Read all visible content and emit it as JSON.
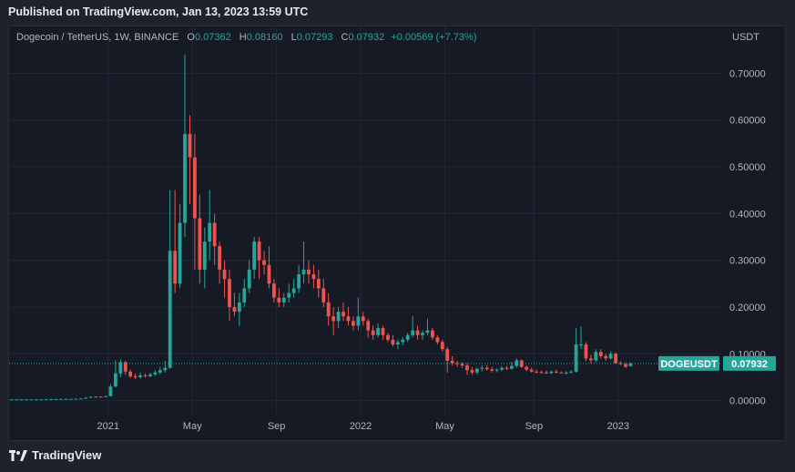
{
  "header": {
    "published": "Published on TradingView.com, Jan 13, 2023 13:59 UTC"
  },
  "legend": {
    "symbol": "Dogecoin / TetherUS, 1W, BINANCE",
    "o_label": "O",
    "o": "0.07362",
    "h_label": "H",
    "h": "0.08160",
    "l_label": "L",
    "l": "0.07293",
    "c_label": "C",
    "c": "0.07932",
    "change": "+0.00569 (+7.73%)"
  },
  "footer": {
    "brand": "TradingView"
  },
  "colors": {
    "up": "#26a69a",
    "down": "#ef5350",
    "background": "#161a25",
    "grid": "#232734",
    "text": "#b2b5be"
  },
  "chart_data": {
    "type": "candlestick",
    "symbol": "DOGEUSDT",
    "currency_label": "USDT",
    "last_price": "0.07932",
    "y_ticks": [
      "0.70000",
      "0.60000",
      "0.50000",
      "0.40000",
      "0.30000",
      "0.20000",
      "0.10000",
      "0.00000"
    ],
    "y_tick_values": [
      0.7,
      0.6,
      0.5,
      0.4,
      0.3,
      0.2,
      0.1,
      0.0
    ],
    "ylim": [
      -0.03,
      0.8
    ],
    "x_ticks": [
      {
        "label": "2021",
        "week": 20
      },
      {
        "label": "May",
        "week": 37
      },
      {
        "label": "Sep",
        "week": 54
      },
      {
        "label": "2022",
        "week": 71
      },
      {
        "label": "May",
        "week": 88
      },
      {
        "label": "Sep",
        "week": 106
      },
      {
        "label": "2023",
        "week": 123
      }
    ],
    "week_range": [
      0,
      144
    ],
    "candles": [
      [
        0.0026,
        0.0026,
        0.0026,
        0.0026
      ],
      [
        0.0026,
        0.0027,
        0.0025,
        0.0026
      ],
      [
        0.0026,
        0.0027,
        0.0025,
        0.0026
      ],
      [
        0.0026,
        0.0027,
        0.0025,
        0.0026
      ],
      [
        0.0026,
        0.0027,
        0.0025,
        0.0026
      ],
      [
        0.0026,
        0.0028,
        0.0025,
        0.0027
      ],
      [
        0.0027,
        0.0028,
        0.0026,
        0.0027
      ],
      [
        0.0027,
        0.0029,
        0.0026,
        0.0028
      ],
      [
        0.0028,
        0.0031,
        0.0027,
        0.003
      ],
      [
        0.003,
        0.0034,
        0.0029,
        0.0033
      ],
      [
        0.0033,
        0.0036,
        0.0031,
        0.0035
      ],
      [
        0.0035,
        0.0038,
        0.0032,
        0.0036
      ],
      [
        0.0036,
        0.0039,
        0.0034,
        0.0037
      ],
      [
        0.0037,
        0.004,
        0.0035,
        0.0039
      ],
      [
        0.0039,
        0.005,
        0.0037,
        0.0045
      ],
      [
        0.0045,
        0.007,
        0.004,
        0.006
      ],
      [
        0.006,
        0.0085,
        0.0055,
        0.008
      ],
      [
        0.008,
        0.009,
        0.0065,
        0.0085
      ],
      [
        0.0085,
        0.0095,
        0.007,
        0.0082
      ],
      [
        0.0082,
        0.01,
        0.0075,
        0.0095
      ],
      [
        0.0095,
        0.035,
        0.009,
        0.03
      ],
      [
        0.03,
        0.086,
        0.028,
        0.058
      ],
      [
        0.058,
        0.088,
        0.05,
        0.082
      ],
      [
        0.082,
        0.085,
        0.055,
        0.062
      ],
      [
        0.062,
        0.066,
        0.048,
        0.052
      ],
      [
        0.052,
        0.058,
        0.046,
        0.05
      ],
      [
        0.05,
        0.06,
        0.047,
        0.054
      ],
      [
        0.054,
        0.058,
        0.049,
        0.052
      ],
      [
        0.052,
        0.06,
        0.05,
        0.056
      ],
      [
        0.056,
        0.065,
        0.053,
        0.06
      ],
      [
        0.06,
        0.072,
        0.056,
        0.065
      ],
      [
        0.065,
        0.085,
        0.06,
        0.07
      ],
      [
        0.07,
        0.45,
        0.068,
        0.32
      ],
      [
        0.32,
        0.45,
        0.23,
        0.25
      ],
      [
        0.25,
        0.42,
        0.24,
        0.38
      ],
      [
        0.38,
        0.74,
        0.35,
        0.57
      ],
      [
        0.57,
        0.61,
        0.42,
        0.52
      ],
      [
        0.52,
        0.57,
        0.28,
        0.39
      ],
      [
        0.39,
        0.44,
        0.25,
        0.28
      ],
      [
        0.28,
        0.37,
        0.24,
        0.34
      ],
      [
        0.34,
        0.45,
        0.3,
        0.38
      ],
      [
        0.38,
        0.4,
        0.29,
        0.33
      ],
      [
        0.33,
        0.34,
        0.25,
        0.28
      ],
      [
        0.28,
        0.3,
        0.22,
        0.26
      ],
      [
        0.26,
        0.28,
        0.17,
        0.2
      ],
      [
        0.2,
        0.23,
        0.18,
        0.19
      ],
      [
        0.19,
        0.23,
        0.16,
        0.21
      ],
      [
        0.21,
        0.26,
        0.2,
        0.24
      ],
      [
        0.24,
        0.3,
        0.23,
        0.28
      ],
      [
        0.28,
        0.35,
        0.26,
        0.34
      ],
      [
        0.34,
        0.35,
        0.26,
        0.3
      ],
      [
        0.3,
        0.32,
        0.27,
        0.29
      ],
      [
        0.29,
        0.33,
        0.24,
        0.25
      ],
      [
        0.25,
        0.26,
        0.21,
        0.22
      ],
      [
        0.22,
        0.24,
        0.2,
        0.21
      ],
      [
        0.21,
        0.23,
        0.2,
        0.22
      ],
      [
        0.22,
        0.25,
        0.21,
        0.23
      ],
      [
        0.23,
        0.26,
        0.22,
        0.24
      ],
      [
        0.24,
        0.29,
        0.23,
        0.27
      ],
      [
        0.27,
        0.34,
        0.25,
        0.28
      ],
      [
        0.28,
        0.3,
        0.25,
        0.27
      ],
      [
        0.27,
        0.29,
        0.24,
        0.26
      ],
      [
        0.26,
        0.28,
        0.22,
        0.24
      ],
      [
        0.24,
        0.26,
        0.2,
        0.21
      ],
      [
        0.21,
        0.23,
        0.16,
        0.18
      ],
      [
        0.18,
        0.2,
        0.14,
        0.17
      ],
      [
        0.17,
        0.2,
        0.155,
        0.19
      ],
      [
        0.19,
        0.21,
        0.17,
        0.18
      ],
      [
        0.18,
        0.2,
        0.16,
        0.17
      ],
      [
        0.17,
        0.18,
        0.15,
        0.16
      ],
      [
        0.16,
        0.22,
        0.15,
        0.18
      ],
      [
        0.18,
        0.19,
        0.16,
        0.17
      ],
      [
        0.17,
        0.175,
        0.135,
        0.15
      ],
      [
        0.15,
        0.16,
        0.13,
        0.14
      ],
      [
        0.14,
        0.165,
        0.135,
        0.155
      ],
      [
        0.155,
        0.16,
        0.13,
        0.14
      ],
      [
        0.14,
        0.145,
        0.125,
        0.13
      ],
      [
        0.13,
        0.14,
        0.115,
        0.12
      ],
      [
        0.12,
        0.13,
        0.11,
        0.125
      ],
      [
        0.125,
        0.135,
        0.118,
        0.13
      ],
      [
        0.13,
        0.145,
        0.125,
        0.14
      ],
      [
        0.14,
        0.18,
        0.135,
        0.15
      ],
      [
        0.15,
        0.16,
        0.13,
        0.14
      ],
      [
        0.14,
        0.15,
        0.13,
        0.145
      ],
      [
        0.145,
        0.175,
        0.14,
        0.15
      ],
      [
        0.15,
        0.155,
        0.13,
        0.135
      ],
      [
        0.135,
        0.14,
        0.12,
        0.125
      ],
      [
        0.125,
        0.13,
        0.105,
        0.11
      ],
      [
        0.11,
        0.115,
        0.06,
        0.085
      ],
      [
        0.085,
        0.095,
        0.075,
        0.08
      ],
      [
        0.08,
        0.085,
        0.072,
        0.078
      ],
      [
        0.078,
        0.082,
        0.07,
        0.075
      ],
      [
        0.075,
        0.08,
        0.055,
        0.065
      ],
      [
        0.065,
        0.072,
        0.055,
        0.06
      ],
      [
        0.06,
        0.07,
        0.056,
        0.068
      ],
      [
        0.068,
        0.075,
        0.062,
        0.07
      ],
      [
        0.07,
        0.076,
        0.064,
        0.067
      ],
      [
        0.067,
        0.072,
        0.06,
        0.064
      ],
      [
        0.064,
        0.069,
        0.06,
        0.066
      ],
      [
        0.066,
        0.073,
        0.063,
        0.07
      ],
      [
        0.07,
        0.074,
        0.065,
        0.068
      ],
      [
        0.068,
        0.083,
        0.066,
        0.074
      ],
      [
        0.074,
        0.09,
        0.07,
        0.086
      ],
      [
        0.086,
        0.088,
        0.07,
        0.072
      ],
      [
        0.072,
        0.075,
        0.063,
        0.066
      ],
      [
        0.066,
        0.07,
        0.06,
        0.062
      ],
      [
        0.062,
        0.066,
        0.058,
        0.061
      ],
      [
        0.061,
        0.064,
        0.058,
        0.06
      ],
      [
        0.06,
        0.064,
        0.057,
        0.059
      ],
      [
        0.059,
        0.064,
        0.057,
        0.062
      ],
      [
        0.062,
        0.066,
        0.058,
        0.06
      ],
      [
        0.06,
        0.062,
        0.058,
        0.059
      ],
      [
        0.059,
        0.063,
        0.056,
        0.06
      ],
      [
        0.06,
        0.065,
        0.058,
        0.062
      ],
      [
        0.062,
        0.155,
        0.06,
        0.12
      ],
      [
        0.12,
        0.158,
        0.11,
        0.12
      ],
      [
        0.12,
        0.125,
        0.085,
        0.09
      ],
      [
        0.09,
        0.098,
        0.08,
        0.086
      ],
      [
        0.086,
        0.11,
        0.082,
        0.104
      ],
      [
        0.104,
        0.11,
        0.09,
        0.095
      ],
      [
        0.095,
        0.1,
        0.085,
        0.09
      ],
      [
        0.09,
        0.105,
        0.088,
        0.1
      ],
      [
        0.1,
        0.103,
        0.078,
        0.08
      ],
      [
        0.08,
        0.084,
        0.076,
        0.078
      ],
      [
        0.078,
        0.081,
        0.07,
        0.072
      ],
      [
        0.07362,
        0.0816,
        0.07293,
        0.07932
      ]
    ]
  }
}
